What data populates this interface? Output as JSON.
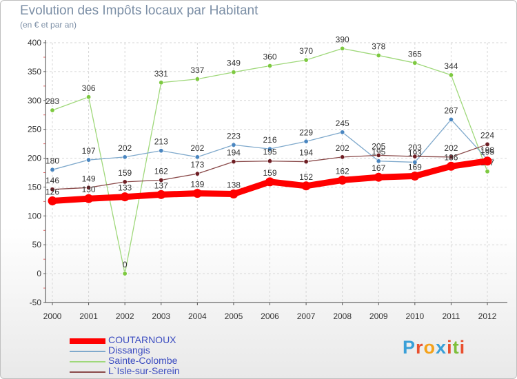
{
  "chart_data": {
    "type": "line",
    "title": "Evolution des Impôts locaux par Habitant",
    "subtitle": "(en € et par an)",
    "xlabel": "",
    "ylabel": "",
    "ylim": [
      -50,
      400
    ],
    "y_ticks": [
      -50,
      0,
      50,
      100,
      150,
      200,
      250,
      300,
      350,
      400
    ],
    "grid": true,
    "legend_position": "bottom-left",
    "categories": [
      "2000",
      "2001",
      "2002",
      "2003",
      "2004",
      "2005",
      "2006",
      "2007",
      "2008",
      "2009",
      "2010",
      "2011",
      "2012"
    ],
    "series": [
      {
        "name": "Sainte-Colombe",
        "color": "#9fd87a",
        "point_color": "#7dc940",
        "values": [
          283,
          306,
          0,
          331,
          337,
          349,
          360,
          370,
          390,
          378,
          365,
          344,
          177
        ]
      },
      {
        "name": "Dissangis",
        "color": "#7fa9cc",
        "point_color": "#4a86c0",
        "values": [
          180,
          197,
          202,
          213,
          202,
          223,
          216,
          229,
          245,
          195,
          193,
          267,
          198
        ]
      },
      {
        "name": "L`Isle-sur-Serein",
        "color": "#8a4a4a",
        "point_color": "#6e1e24",
        "values": [
          146,
          149,
          159,
          162,
          173,
          194,
          195,
          194,
          202,
          205,
          203,
          202,
          224
        ]
      },
      {
        "name": "COUTARNOUX",
        "color": "#ff0000",
        "point_color": "#ff0000",
        "values": [
          126,
          130,
          133,
          137,
          139,
          138,
          159,
          152,
          162,
          167,
          169,
          186,
          195
        ]
      }
    ]
  },
  "legend": {
    "items": [
      {
        "label": "COUTARNOUX",
        "color": "#ff0000",
        "text_color": "#3b4cc0"
      },
      {
        "label": "Dissangis",
        "color": "#7fa9cc",
        "text_color": "#3b4cc0"
      },
      {
        "label": "Sainte-Colombe",
        "color": "#9fd87a",
        "text_color": "#3b4cc0"
      },
      {
        "label": "L`Isle-sur-Serein",
        "color": "#8a4a4a",
        "text_color": "#3b4cc0"
      }
    ]
  },
  "brand": {
    "letters": [
      "P",
      "r",
      "o",
      "x",
      "i",
      "t",
      "i"
    ],
    "colors": [
      "#3aa0d8",
      "#e94f2e",
      "#f4a21b",
      "#3aa0d8",
      "#e94f2e",
      "#7dbf3b",
      "#e94f2e"
    ]
  }
}
